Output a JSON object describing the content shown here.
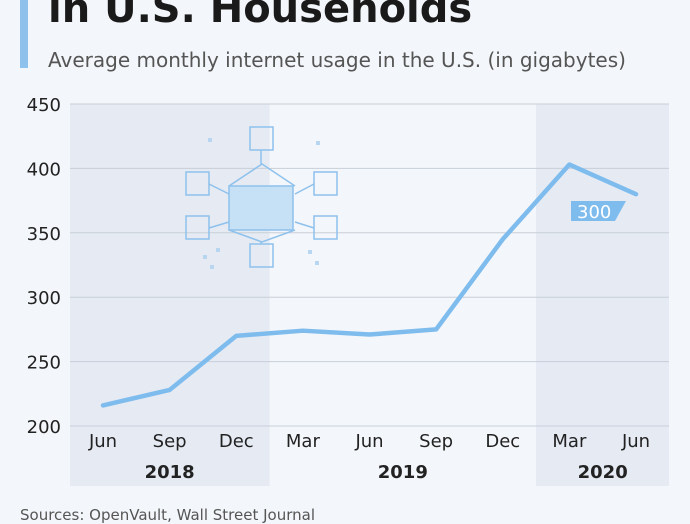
{
  "header": {
    "title": "in U.S. Households",
    "subtitle": "Average monthly internet usage in the U.S. (in gigabytes)"
  },
  "footer": {
    "source": "Sources: OpenVault, Wall Street Journal"
  },
  "colors": {
    "line": "#7fbcee",
    "shade": "#e5eaf3",
    "grid": "#c9cfd8",
    "accent": "#8ec1ec"
  },
  "chart_data": {
    "type": "line",
    "title": "in U.S. Households",
    "subtitle": "Average monthly internet usage in the U.S. (in gigabytes)",
    "ylim": [
      200,
      450
    ],
    "yticks": [
      200,
      250,
      300,
      350,
      400,
      450
    ],
    "categories": [
      "Jun",
      "Sep",
      "Dec",
      "Mar",
      "Jun",
      "Sep",
      "Dec",
      "Mar",
      "Jun"
    ],
    "year_groups": [
      {
        "label": "2018",
        "start": 0,
        "end": 2,
        "shaded": true
      },
      {
        "label": "2019",
        "start": 3,
        "end": 6,
        "shaded": false
      },
      {
        "label": "2020",
        "start": 7,
        "end": 8,
        "shaded": true
      }
    ],
    "series": [
      {
        "values": [
          216,
          228,
          270,
          274,
          271,
          275,
          345,
          403,
          380
        ]
      }
    ],
    "annotation": {
      "text": "300"
    },
    "grid": true
  }
}
